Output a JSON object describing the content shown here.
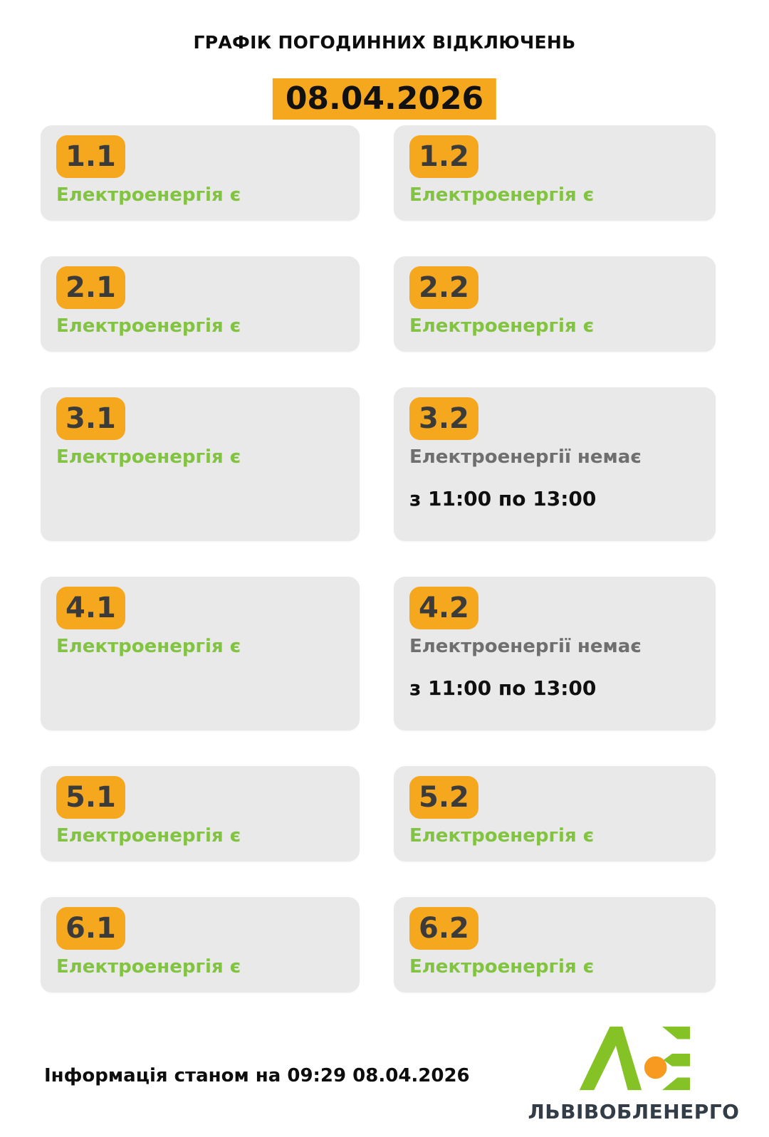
{
  "header": {
    "title": "ГРАФІК ПОГОДИННИХ ВІДКЛЮЧЕНЬ",
    "date": "08.04.2026"
  },
  "cards": [
    {
      "group": "1.1",
      "status": "Електроенергія є",
      "has_power": true
    },
    {
      "group": "1.2",
      "status": "Електроенергія є",
      "has_power": true
    },
    {
      "group": "2.1",
      "status": "Електроенергія є",
      "has_power": true
    },
    {
      "group": "2.2",
      "status": "Електроенергія є",
      "has_power": true
    },
    {
      "group": "3.1",
      "status": "Електроенергія є",
      "has_power": true
    },
    {
      "group": "3.2",
      "status": "Електроенергії немає",
      "has_power": false,
      "time": "з 11:00 по 13:00"
    },
    {
      "group": "4.1",
      "status": "Електроенергія є",
      "has_power": true
    },
    {
      "group": "4.2",
      "status": "Електроенергії немає",
      "has_power": false,
      "time": "з 11:00 по 13:00"
    },
    {
      "group": "5.1",
      "status": "Електроенергія є",
      "has_power": true
    },
    {
      "group": "5.2",
      "status": "Електроенергія є",
      "has_power": true
    },
    {
      "group": "6.1",
      "status": "Електроенергія є",
      "has_power": true
    },
    {
      "group": "6.2",
      "status": "Електроенергія є",
      "has_power": true
    }
  ],
  "footer": {
    "info": "Інформація станом на 09:29 08.04.2026",
    "brand": "ЛЬВІВОБЛЕНЕРГО"
  },
  "icons": {
    "logo": "lvivoblenergo-loe-mark"
  },
  "colors": {
    "accent_orange": "#f5a81e",
    "power_on_green": "#82c341",
    "power_off_gray": "#6f6f6f",
    "badge_text": "#3b3b3b",
    "card_background": "#e9e9e9",
    "time_text": "#0f0f0f",
    "brand_dark": "#333d47",
    "logo_green": "#84c225",
    "logo_orange": "#f79a1f"
  }
}
